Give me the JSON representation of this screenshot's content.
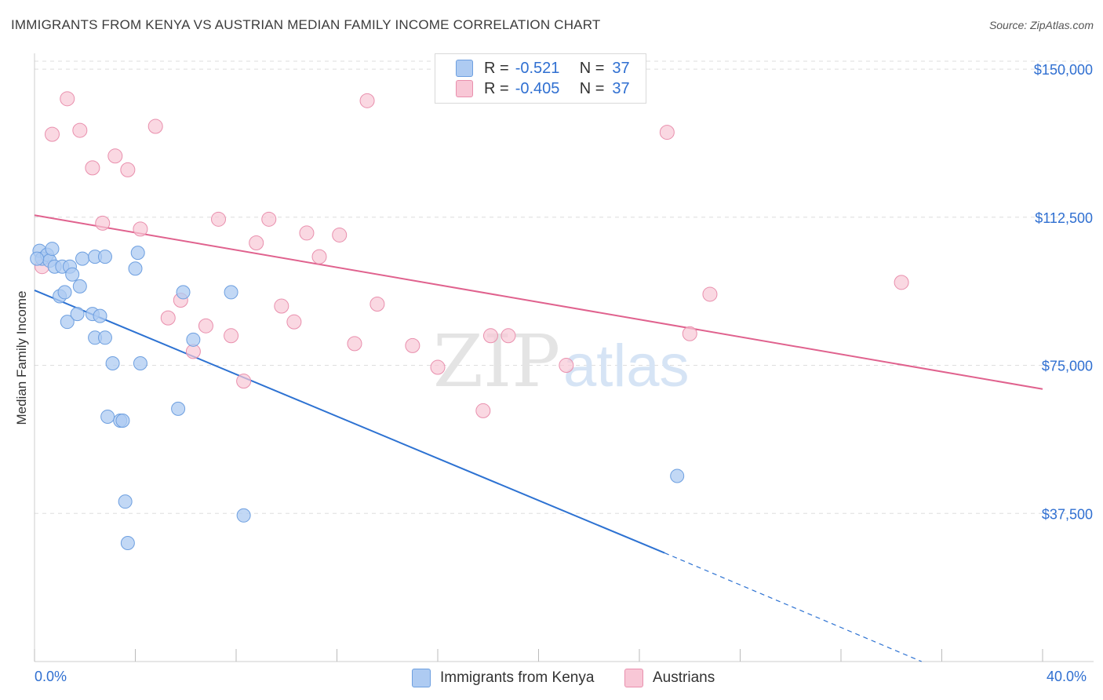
{
  "header": {
    "title": "IMMIGRANTS FROM KENYA VS AUSTRIAN MEDIAN FAMILY INCOME CORRELATION CHART",
    "source": "Source: ZipAtlas.com"
  },
  "legend": {
    "rows": [
      {
        "r_label": "R =",
        "r_value": "-0.521",
        "n_label": "N =",
        "n_value": "37",
        "color": "#a9c8f0",
        "border": "#6fa0e0"
      },
      {
        "r_label": "R =",
        "r_value": "-0.405",
        "n_label": "N =",
        "n_value": "37",
        "color": "#f7c0d0",
        "border": "#e88aa8"
      }
    ]
  },
  "bottom_legend": {
    "kenya": "Immigrants from Kenya",
    "austrians": "Austrians"
  },
  "watermark": {
    "zip": "ZIP",
    "atlas": "atlas"
  },
  "colors": {
    "blue_fill": "#aecbf2",
    "blue_stroke": "#6d9fe0",
    "blue_line": "#2d72d2",
    "pink_fill": "#f8c7d6",
    "pink_stroke": "#e98fad",
    "pink_line": "#e0628e",
    "tick_text": "#2f6fd1"
  },
  "chart_data": {
    "type": "scatter",
    "xlabel": "",
    "ylabel": "Median Family Income",
    "xlim": [
      0,
      40
    ],
    "ylim": [
      0,
      152000
    ],
    "x_tick_labels": [
      "0.0%",
      "40.0%"
    ],
    "y_ticks": [
      37500,
      75000,
      112500,
      150000
    ],
    "y_tick_labels": [
      "$37,500",
      "$75,000",
      "$112,500",
      "$150,000"
    ],
    "grid": true,
    "legend_position": "top-center",
    "series": [
      {
        "name": "Immigrants from Kenya",
        "color": "#aecbf2",
        "points": [
          [
            0.2,
            104000
          ],
          [
            0.3,
            102000
          ],
          [
            0.5,
            103000
          ],
          [
            0.6,
            101500
          ],
          [
            0.7,
            104500
          ],
          [
            0.8,
            100000
          ],
          [
            1.0,
            92500
          ],
          [
            1.1,
            100000
          ],
          [
            1.2,
            93500
          ],
          [
            1.3,
            86000
          ],
          [
            1.4,
            100000
          ],
          [
            1.5,
            98000
          ],
          [
            1.7,
            88000
          ],
          [
            1.8,
            95000
          ],
          [
            1.9,
            102000
          ],
          [
            2.3,
            88000
          ],
          [
            2.4,
            102500
          ],
          [
            2.4,
            82000
          ],
          [
            2.6,
            87500
          ],
          [
            2.8,
            102500
          ],
          [
            2.8,
            82000
          ],
          [
            2.9,
            62000
          ],
          [
            3.1,
            75500
          ],
          [
            3.4,
            61000
          ],
          [
            3.5,
            61000
          ],
          [
            3.6,
            40500
          ],
          [
            3.7,
            30000
          ],
          [
            4.0,
            99500
          ],
          [
            4.1,
            103500
          ],
          [
            4.2,
            75500
          ],
          [
            5.7,
            64000
          ],
          [
            5.9,
            93500
          ],
          [
            6.3,
            81500
          ],
          [
            7.8,
            93500
          ],
          [
            8.3,
            37000
          ],
          [
            25.5,
            47000
          ],
          [
            0.1,
            102000
          ]
        ],
        "trend": {
          "x0": 0,
          "y0": 94000,
          "x1": 25.0,
          "y1": 27500,
          "dash_to_x": 35.2,
          "dash_to_y": 0
        }
      },
      {
        "name": "Austrians",
        "color": "#f8c7d6",
        "points": [
          [
            0.3,
            100000
          ],
          [
            0.7,
            133500
          ],
          [
            1.3,
            142500
          ],
          [
            1.8,
            134500
          ],
          [
            2.3,
            125000
          ],
          [
            2.7,
            111000
          ],
          [
            3.2,
            128000
          ],
          [
            3.7,
            124500
          ],
          [
            4.2,
            109500
          ],
          [
            4.8,
            135500
          ],
          [
            5.3,
            87000
          ],
          [
            5.8,
            91500
          ],
          [
            6.3,
            78500
          ],
          [
            6.8,
            85000
          ],
          [
            7.3,
            112000
          ],
          [
            7.8,
            82500
          ],
          [
            8.3,
            71000
          ],
          [
            8.8,
            106000
          ],
          [
            9.3,
            112000
          ],
          [
            9.8,
            90000
          ],
          [
            10.3,
            86000
          ],
          [
            10.8,
            108500
          ],
          [
            11.3,
            102500
          ],
          [
            12.1,
            108000
          ],
          [
            12.7,
            80500
          ],
          [
            13.2,
            142000
          ],
          [
            13.6,
            90500
          ],
          [
            15.0,
            80000
          ],
          [
            16.0,
            74500
          ],
          [
            17.8,
            63500
          ],
          [
            18.1,
            82500
          ],
          [
            18.8,
            82500
          ],
          [
            21.1,
            75000
          ],
          [
            25.1,
            134000
          ],
          [
            26.0,
            83000
          ],
          [
            26.8,
            93000
          ],
          [
            34.4,
            96000
          ]
        ],
        "trend": {
          "x0": 0,
          "y0": 113000,
          "x1": 40,
          "y1": 69000
        }
      }
    ]
  }
}
